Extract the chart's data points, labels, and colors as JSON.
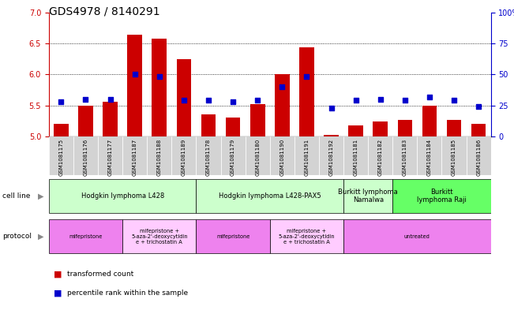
{
  "title": "GDS4978 / 8140291",
  "samples": [
    "GSM1081175",
    "GSM1081176",
    "GSM1081177",
    "GSM1081187",
    "GSM1081188",
    "GSM1081189",
    "GSM1081178",
    "GSM1081179",
    "GSM1081180",
    "GSM1081190",
    "GSM1081191",
    "GSM1081192",
    "GSM1081181",
    "GSM1081182",
    "GSM1081183",
    "GSM1081184",
    "GSM1081185",
    "GSM1081186"
  ],
  "bar_values": [
    5.2,
    5.5,
    5.56,
    6.64,
    6.58,
    6.25,
    5.36,
    5.3,
    5.52,
    6.0,
    6.44,
    5.02,
    5.18,
    5.24,
    5.27,
    5.5,
    5.27,
    5.2
  ],
  "percentile_values": [
    28,
    30,
    30,
    50,
    48,
    29,
    29,
    28,
    29,
    40,
    48,
    23,
    29,
    30,
    29,
    32,
    29,
    24
  ],
  "ylim_left": [
    5.0,
    7.0
  ],
  "ylim_right": [
    0,
    100
  ],
  "yticks_left": [
    5.0,
    5.5,
    6.0,
    6.5,
    7.0
  ],
  "yticks_right": [
    0,
    25,
    50,
    75,
    100
  ],
  "bar_color": "#cc0000",
  "dot_color": "#0000cc",
  "xtick_bg_color": "#d3d3d3",
  "cell_line_groups": [
    {
      "label": "Hodgkin lymphoma L428",
      "start": 0,
      "end": 5,
      "color": "#ccffcc"
    },
    {
      "label": "Hodgkin lymphoma L428-PAX5",
      "start": 6,
      "end": 11,
      "color": "#ccffcc"
    },
    {
      "label": "Burkitt lymphoma\nNamalwa",
      "start": 12,
      "end": 13,
      "color": "#ccffcc"
    },
    {
      "label": "Burkitt\nlymphoma Raji",
      "start": 14,
      "end": 17,
      "color": "#66ff66"
    }
  ],
  "protocol_groups": [
    {
      "label": "mifepristone",
      "start": 0,
      "end": 2,
      "color": "#ee82ee"
    },
    {
      "label": "mifepristone +\n5-aza-2'-deoxycytidin\ne + trichostatin A",
      "start": 3,
      "end": 5,
      "color": "#ffccff"
    },
    {
      "label": "mifepristone",
      "start": 6,
      "end": 8,
      "color": "#ee82ee"
    },
    {
      "label": "mifepristone +\n5-aza-2'-deoxycytidin\ne + trichostatin A",
      "start": 9,
      "end": 11,
      "color": "#ffccff"
    },
    {
      "label": "untreated",
      "start": 12,
      "end": 17,
      "color": "#ee82ee"
    }
  ],
  "background_color": "#ffffff",
  "title_fontsize": 10,
  "tick_fontsize": 7,
  "bar_width": 0.6,
  "dot_size": 18
}
